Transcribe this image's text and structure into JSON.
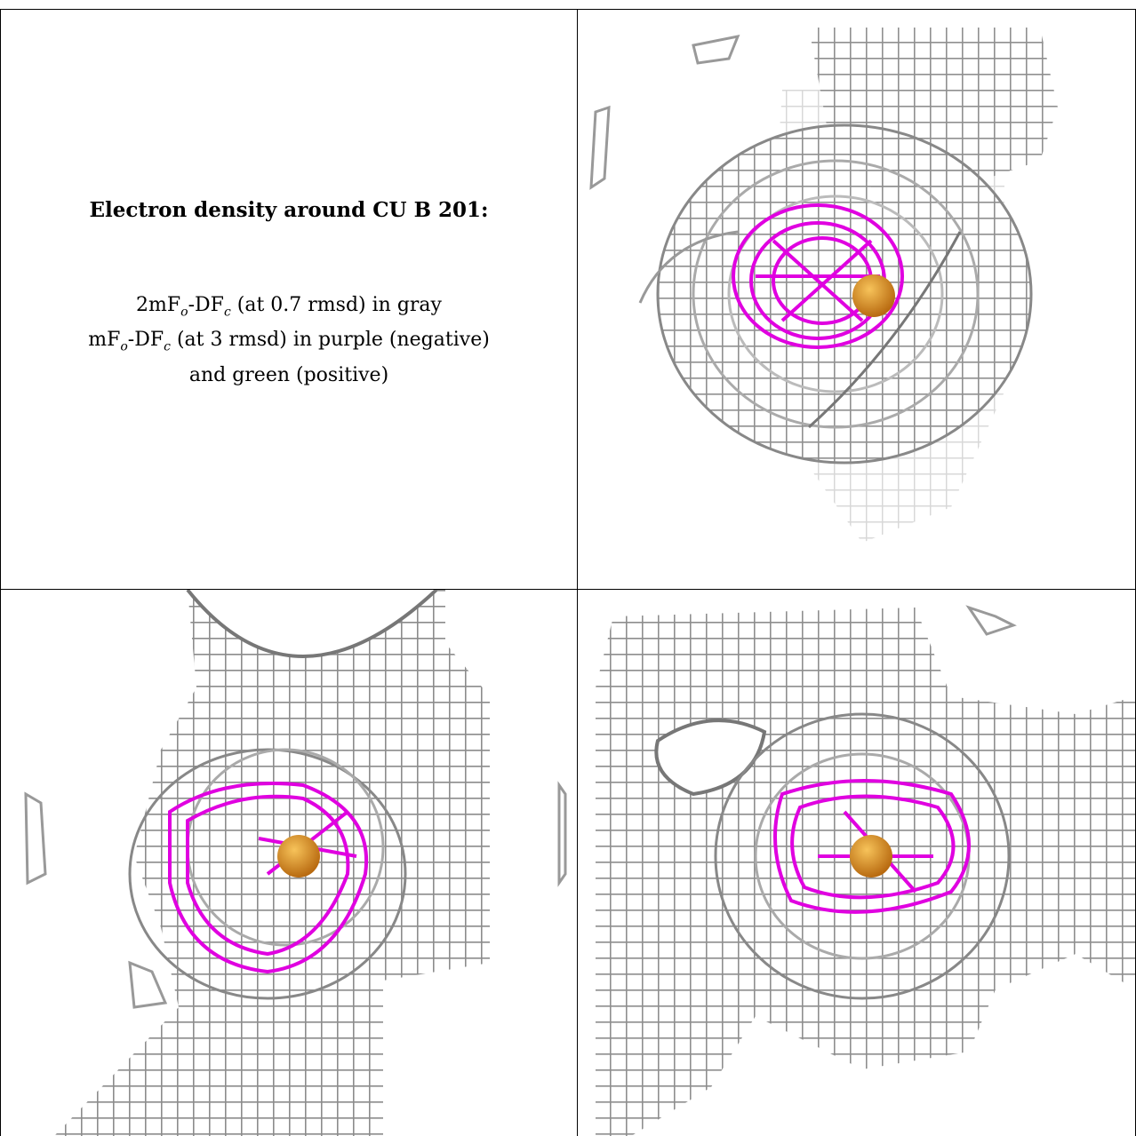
{
  "caption": {
    "title": "Electron density around CU B 201:",
    "line1": {
      "a": "2mF",
      "o": "o",
      "b": "-DF",
      "c": "c",
      "rest": " (at 0.7 rmsd) in gray"
    },
    "line2": {
      "a": "mF",
      "o": "o",
      "b": "-DF",
      "c": "c",
      "rest": " (at 3 rmsd) in purple (negative)"
    },
    "line3": "and green (positive)"
  },
  "colors": {
    "mesh_gray": "#8a8a8a",
    "mesh_dark": "#5c5c5c",
    "mesh_light": "#c8c8c8",
    "negative_density": "#e000e0",
    "copper_atom": "#e0901e",
    "border": "#000000"
  },
  "panels": [
    {
      "name": "view-top-right"
    },
    {
      "name": "view-bottom-left"
    },
    {
      "name": "view-bottom-right"
    }
  ]
}
